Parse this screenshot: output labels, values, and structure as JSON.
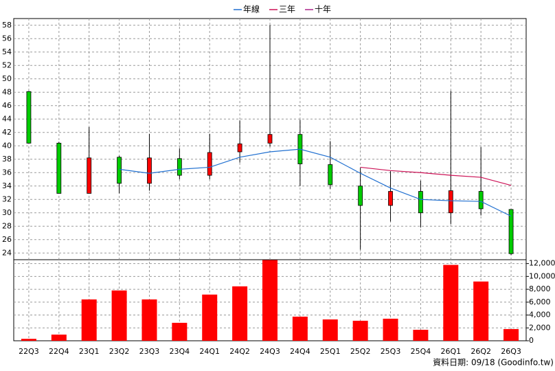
{
  "chart_data": {
    "type": "candlestick",
    "categories": [
      "22Q3",
      "22Q4",
      "23Q1",
      "23Q2",
      "23Q3",
      "23Q4",
      "24Q1",
      "24Q2",
      "24Q3",
      "24Q4",
      "25Q1",
      "25Q2",
      "25Q3",
      "25Q4",
      "26Q1",
      "26Q2",
      "26Q3"
    ],
    "open": [
      48.1,
      40.4,
      32.9,
      38.3,
      34.4,
      38.1,
      35.6,
      39.1,
      40.4,
      41.7,
      37.2,
      34.0,
      31.1,
      33.2,
      30.0,
      33.2,
      30.5
    ],
    "high": [
      48.2,
      40.6,
      42.8,
      38.5,
      41.8,
      39.6,
      41.8,
      43.8,
      58.0,
      43.9,
      40.7,
      36.7,
      36.2,
      34.8,
      48.2,
      39.8,
      30.5
    ],
    "low": [
      40.4,
      32.9,
      32.9,
      32.9,
      33.3,
      35.0,
      35.0,
      37.5,
      39.9,
      34.0,
      33.6,
      24.5,
      28.7,
      27.8,
      28.3,
      29.6,
      23.7
    ],
    "close": [
      40.4,
      32.9,
      38.2,
      34.4,
      38.2,
      35.6,
      39.0,
      40.3,
      41.7,
      37.3,
      34.2,
      31.1,
      33.2,
      30.0,
      33.3,
      30.6,
      23.9
    ],
    "up_color": "#ff0000",
    "down_color": "#00cc00",
    "ylim": [
      23,
      59
    ],
    "yticks": [
      24,
      26,
      28,
      30,
      32,
      34,
      36,
      38,
      40,
      42,
      44,
      46,
      48,
      50,
      52,
      54,
      56,
      58
    ],
    "grid": true,
    "series": [
      {
        "name": "年線",
        "color": "#1f6fd0",
        "values": [
          null,
          null,
          null,
          36.5,
          35.9,
          36.5,
          36.8,
          38.3,
          39.1,
          39.5,
          38.3,
          35.9,
          33.7,
          32.0,
          31.8,
          31.7,
          29.5
        ]
      },
      {
        "name": "三年",
        "color": "#cc1155",
        "values": [
          null,
          null,
          null,
          null,
          null,
          null,
          null,
          null,
          null,
          null,
          null,
          36.8,
          36.3,
          36.0,
          35.6,
          35.3,
          34.1
        ]
      },
      {
        "name": "十年",
        "color": "#aa2288",
        "values": [
          null,
          null,
          null,
          null,
          null,
          null,
          null,
          null,
          null,
          null,
          null,
          null,
          null,
          null,
          null,
          null,
          null
        ]
      }
    ],
    "volume": {
      "color": "#ff0000",
      "values": [
        300,
        960,
        6430,
        7820,
        6430,
        2790,
        7180,
        8460,
        12540,
        3750,
        3320,
        3110,
        3430,
        1710,
        11790,
        9210,
        1820
      ],
      "ylim": [
        0,
        12600
      ],
      "yticks": [
        0,
        {
          "value": 2000,
          "label": "2,000"
        },
        {
          "value": 4000,
          "label": "4,000"
        },
        {
          "value": 6000,
          "label": "6,000"
        },
        {
          "value": 8000,
          "label": "8,000"
        },
        {
          "value": 10000,
          "label": "10,000"
        },
        {
          "value": 12000,
          "label": "12,000"
        }
      ]
    },
    "source": "資料日期: 09/18  (Goodinfo.tw)"
  }
}
